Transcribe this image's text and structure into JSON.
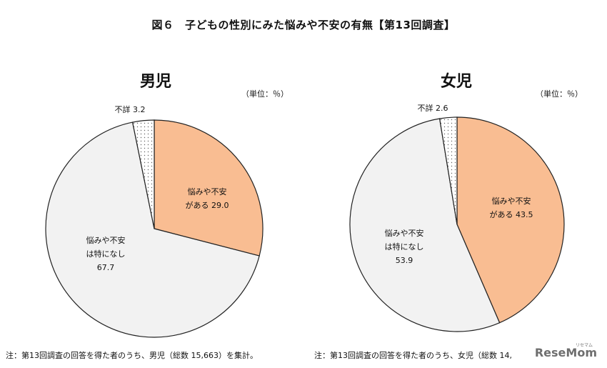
{
  "title": "図６　子どもの性別にみた悩みや不安の有無【第13回調査】",
  "unit": "（単位：％）",
  "chart_data": [
    {
      "type": "pie",
      "title": "男児",
      "slices": [
        {
          "label_lines": [
            "悩みや不安",
            "がある 29.0"
          ],
          "value": 29.0,
          "color": "#f9bd92"
        },
        {
          "label_lines": [
            "悩みや不安",
            "は特になし",
            "67.7"
          ],
          "value": 67.7,
          "color": "#f2f2f2"
        },
        {
          "label_lines": [
            "不詳 3.2"
          ],
          "value": 3.2,
          "color": "#ffffff",
          "pattern": "dots"
        }
      ],
      "note": "注：第13回調査の回答を得た者のうち、男児（総数 15,663）を集計。"
    },
    {
      "type": "pie",
      "title": "女児",
      "slices": [
        {
          "label_lines": [
            "悩みや不安",
            "がある 43.5"
          ],
          "value": 43.5,
          "color": "#f9bd92"
        },
        {
          "label_lines": [
            "悩みや不安",
            "は特になし",
            "53.9"
          ],
          "value": 53.9,
          "color": "#f2f2f2"
        },
        {
          "label_lines": [
            "不詳 2.6"
          ],
          "value": 2.6,
          "color": "#ffffff",
          "pattern": "dots"
        }
      ],
      "note": "注：第13回調査の回答を得た者のうち、女児（総数 14,"
    }
  ],
  "brand": {
    "name": "ReseMom",
    "sub": "リセマム"
  }
}
